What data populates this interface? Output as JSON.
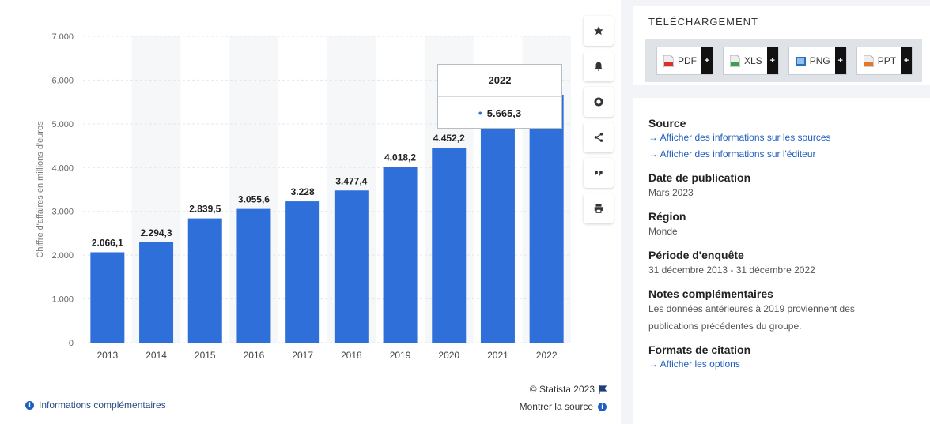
{
  "chart_data": {
    "type": "bar",
    "categories": [
      "2013",
      "2014",
      "2015",
      "2016",
      "2017",
      "2018",
      "2019",
      "2020",
      "2021",
      "2022"
    ],
    "values": [
      2066.1,
      2294.3,
      2839.5,
      3055.6,
      3228,
      3477.4,
      4018.2,
      4452.2,
      4900,
      5665.3
    ],
    "data_labels": [
      "2.066,1",
      "2.294,3",
      "2.839,5",
      "3.055,6",
      "3.228",
      "3.477,4",
      "4.018,2",
      "4.452,2",
      "",
      ""
    ],
    "ylabel": "Chiffre d'affaires en millions d'euros",
    "ylim": [
      0,
      7000
    ],
    "yticks": [
      0,
      1000,
      2000,
      3000,
      4000,
      5000,
      6000,
      7000
    ],
    "ytick_labels": [
      "0",
      "1.000",
      "2.000",
      "3.000",
      "4.000",
      "5.000",
      "6.000",
      "7.000"
    ],
    "bar_color": "#2e6fd9",
    "grid": true
  },
  "tooltip": {
    "year": "2022",
    "value": "5.665,3"
  },
  "toolbar": {
    "icons": [
      "star-icon",
      "bell-icon",
      "gear-icon",
      "share-icon",
      "quote-icon",
      "print-icon"
    ]
  },
  "footer": {
    "info_link": "Informations complémentaires",
    "copyright": "© Statista 2023",
    "show_source": "Montrer la source"
  },
  "download": {
    "title": "TÉLÉCHARGEMENT",
    "buttons": [
      {
        "label": "PDF",
        "color": "#d9322b"
      },
      {
        "label": "XLS",
        "color": "#3aa04a"
      },
      {
        "label": "PNG",
        "color": "#2f6fb7"
      },
      {
        "label": "PPT",
        "color": "#e0792b"
      }
    ]
  },
  "meta": {
    "source_title": "Source",
    "source_link1": "→ Afficher des informations sur les sources",
    "source_link2": "→ Afficher des informations sur l'éditeur",
    "pub_title": "Date de publication",
    "pub_value": "Mars 2023",
    "region_title": "Région",
    "region_value": "Monde",
    "period_title": "Période d'enquête",
    "period_value": "31 décembre 2013 - 31 décembre 2022",
    "notes_title": "Notes complémentaires",
    "notes_line1": "Les données antérieures à 2019 proviennent des",
    "notes_line2": "publications précédentes du groupe.",
    "cite_title": "Formats de citation",
    "cite_link": "→ Afficher les options"
  }
}
